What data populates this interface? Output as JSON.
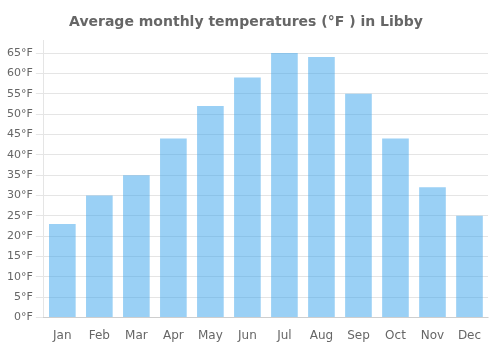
{
  "chart_data": {
    "type": "bar",
    "title": "Average monthly temperatures (°F ) in Libby",
    "categories": [
      "Jan",
      "Feb",
      "Mar",
      "Apr",
      "May",
      "Jun",
      "Jul",
      "Aug",
      "Sep",
      "Oct",
      "Nov",
      "Dec"
    ],
    "values": [
      23,
      30,
      35,
      44,
      52,
      59,
      65,
      64,
      55,
      44,
      32,
      25
    ],
    "ylim": [
      0,
      68
    ],
    "yticks": [
      {
        "value": 0,
        "label": "0°F"
      },
      {
        "value": 5,
        "label": "5°F"
      },
      {
        "value": 10,
        "label": "10°F"
      },
      {
        "value": 15,
        "label": "15°F"
      },
      {
        "value": 20,
        "label": "20°F"
      },
      {
        "value": 25,
        "label": "25°F"
      },
      {
        "value": 30,
        "label": "30°F"
      },
      {
        "value": 35,
        "label": "35°F"
      },
      {
        "value": 40,
        "label": "40°F"
      },
      {
        "value": 45,
        "label": "45°F"
      },
      {
        "value": 50,
        "label": "50°F"
      },
      {
        "value": 55,
        "label": "55°F"
      },
      {
        "value": 60,
        "label": "60°F"
      },
      {
        "value": 65,
        "label": "65°F"
      }
    ],
    "grid": true
  }
}
